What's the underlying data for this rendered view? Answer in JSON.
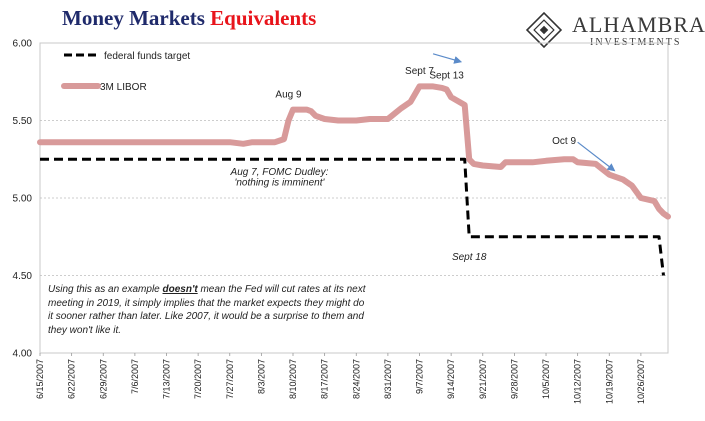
{
  "title": {
    "part1": "Money Markets ",
    "part2": "Equivalents",
    "color1": "#1f2a6b",
    "color2": "#e8141b"
  },
  "logo": {
    "main": "ALHAMBRA",
    "sub": "INVESTMENTS"
  },
  "note": {
    "pre": "Using this as an example ",
    "emph": "doesn't",
    "post": " mean the Fed will cut rates at its next meeting in 2019, it simply implies that the market expects they might do it sooner rather than later. Like 2007, it would be a surprise to them and they won't like it."
  },
  "chart_data": {
    "type": "line",
    "ylim": [
      4.0,
      6.0
    ],
    "yticks": [
      4.0,
      4.5,
      5.0,
      5.5,
      6.0
    ],
    "ytick_labels": [
      "4.00",
      "4.50",
      "5.00",
      "5.50",
      "6.00"
    ],
    "grid": true,
    "legend_position": "top-left",
    "x_dates": [
      "6/15/2007",
      "6/22/2007",
      "6/29/2007",
      "7/6/2007",
      "7/13/2007",
      "7/20/2007",
      "7/27/2007",
      "8/3/2007",
      "8/10/2007",
      "8/17/2007",
      "8/24/2007",
      "8/31/2007",
      "9/7/2007",
      "9/14/2007",
      "9/21/2007",
      "9/28/2007",
      "10/5/2007",
      "10/12/2007",
      "10/19/2007",
      "10/26/2007"
    ],
    "x_range": [
      "6/15/2007",
      "11/1/2007"
    ],
    "series": [
      {
        "name": "federal funds target",
        "color": "#000000",
        "style": "dashed",
        "points": [
          [
            "6/15/2007",
            5.25
          ],
          [
            "9/17/2007",
            5.25
          ],
          [
            "9/18/2007",
            4.75
          ],
          [
            "10/30/2007",
            4.75
          ],
          [
            "10/31/2007",
            4.5
          ]
        ]
      },
      {
        "name": "3M LIBOR",
        "color": "#d89a9a",
        "style": "solid",
        "points": [
          [
            "6/15/2007",
            5.36
          ],
          [
            "6/22/2007",
            5.36
          ],
          [
            "6/29/2007",
            5.36
          ],
          [
            "7/6/2007",
            5.36
          ],
          [
            "7/13/2007",
            5.36
          ],
          [
            "7/20/2007",
            5.36
          ],
          [
            "7/27/2007",
            5.36
          ],
          [
            "7/30/2007",
            5.35
          ],
          [
            "8/1/2007",
            5.36
          ],
          [
            "8/6/2007",
            5.36
          ],
          [
            "8/8/2007",
            5.38
          ],
          [
            "8/9/2007",
            5.5
          ],
          [
            "8/10/2007",
            5.57
          ],
          [
            "8/13/2007",
            5.57
          ],
          [
            "8/14/2007",
            5.56
          ],
          [
            "8/15/2007",
            5.53
          ],
          [
            "8/17/2007",
            5.51
          ],
          [
            "8/20/2007",
            5.5
          ],
          [
            "8/24/2007",
            5.5
          ],
          [
            "8/27/2007",
            5.51
          ],
          [
            "8/31/2007",
            5.51
          ],
          [
            "9/3/2007",
            5.58
          ],
          [
            "9/5/2007",
            5.62
          ],
          [
            "9/7/2007",
            5.72
          ],
          [
            "9/10/2007",
            5.72
          ],
          [
            "9/12/2007",
            5.71
          ],
          [
            "9/13/2007",
            5.7
          ],
          [
            "9/14/2007",
            5.65
          ],
          [
            "9/17/2007",
            5.6
          ],
          [
            "9/18/2007",
            5.25
          ],
          [
            "9/19/2007",
            5.22
          ],
          [
            "9/21/2007",
            5.21
          ],
          [
            "9/25/2007",
            5.2
          ],
          [
            "9/26/2007",
            5.23
          ],
          [
            "9/28/2007",
            5.23
          ],
          [
            "10/2/2007",
            5.23
          ],
          [
            "10/5/2007",
            5.24
          ],
          [
            "10/9/2007",
            5.25
          ],
          [
            "10/11/2007",
            5.25
          ],
          [
            "10/12/2007",
            5.23
          ],
          [
            "10/16/2007",
            5.22
          ],
          [
            "10/19/2007",
            5.15
          ],
          [
            "10/22/2007",
            5.12
          ],
          [
            "10/24/2007",
            5.08
          ],
          [
            "10/26/2007",
            5.0
          ],
          [
            "10/29/2007",
            4.98
          ],
          [
            "10/30/2007",
            4.93
          ],
          [
            "10/31/2007",
            4.9
          ],
          [
            "11/1/2007",
            4.88
          ]
        ]
      }
    ],
    "annotations": [
      {
        "text": "Aug 9",
        "x": "8/9/2007",
        "y": 5.65
      },
      {
        "text": "Sept 7",
        "x": "9/7/2007",
        "y": 5.8
      },
      {
        "text": "Sept 13",
        "x": "9/13/2007",
        "y": 5.77
      },
      {
        "text": "Oct 9",
        "x": "10/9/2007",
        "y": 5.35
      },
      {
        "text": "Sept 18",
        "x": "9/18/2007",
        "y": 4.6
      },
      {
        "text": "Aug 7, FOMC Dudley:",
        "x": "8/7/2007",
        "y": 5.15
      },
      {
        "text": "'nothing is imminent'",
        "x": "8/7/2007",
        "y": 5.08
      }
    ],
    "arrows": [
      {
        "from": [
          "9/10/2007",
          5.93
        ],
        "to": [
          "9/16/2007",
          5.88
        ]
      },
      {
        "from": [
          "10/12/2007",
          5.36
        ],
        "to": [
          "10/20/2007",
          5.18
        ]
      }
    ]
  }
}
